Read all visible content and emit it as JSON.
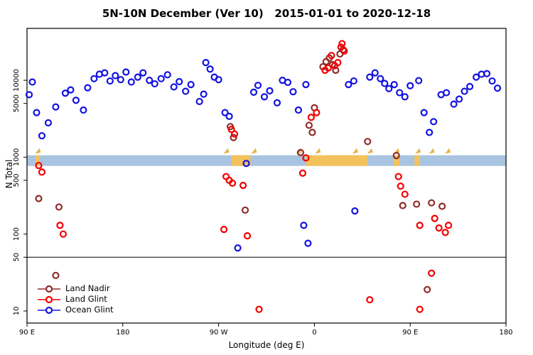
{
  "chart_data": {
    "type": "scatter",
    "title": "5N-10N December (Ver 10)   2015-01-01 to 2020-12-18",
    "xlabel": "Longitude (deg E)",
    "ylabel": "N Total",
    "y_scale": "log",
    "x_range": [
      90,
      540
    ],
    "y_range": [
      10,
      47000
    ],
    "separator_y": 50,
    "x_ticks": [
      {
        "value": 90,
        "label": "90 E"
      },
      {
        "value": 180,
        "label": "180"
      },
      {
        "value": 270,
        "label": "90 W"
      },
      {
        "value": 360,
        "label": "0"
      },
      {
        "value": 450,
        "label": "90 E"
      },
      {
        "value": 540,
        "label": "180"
      }
    ],
    "y_ticks": [
      10,
      50,
      100,
      500,
      1000,
      5000,
      10000
    ],
    "band": {
      "n_top": 1060,
      "n_bottom": 770,
      "ocean_color": "#a9c4e1",
      "land_color": "#f3c25c",
      "arrow_color": "#e9b24a",
      "land_segments": [
        [
          98,
          102
        ],
        [
          282,
          300
        ],
        [
          352,
          410
        ],
        [
          434,
          440
        ],
        [
          454,
          459
        ]
      ],
      "arrow_lons": [
        100,
        277,
        303,
        345,
        363,
        398,
        412,
        437,
        457,
        470,
        485
      ]
    },
    "series": [
      {
        "name": "Land Nadir",
        "color": "#8f2d2b",
        "points": [
          [
            101,
            290
          ],
          [
            120,
            225
          ],
          [
            281,
            2500
          ],
          [
            284,
            1800
          ],
          [
            295,
            205
          ],
          [
            347,
            1150
          ],
          [
            355,
            2600
          ],
          [
            358,
            2100
          ],
          [
            360,
            4400
          ],
          [
            368,
            15000
          ],
          [
            371,
            17500
          ],
          [
            374,
            19500
          ],
          [
            377,
            16000
          ],
          [
            380,
            13500
          ],
          [
            384,
            22000
          ],
          [
            387,
            25000
          ],
          [
            410,
            1600
          ],
          [
            437,
            1050
          ],
          [
            443,
            235
          ],
          [
            456,
            245
          ],
          [
            470,
            255
          ],
          [
            480,
            230
          ],
          [
            117,
            29
          ],
          [
            466,
            19
          ]
        ]
      },
      {
        "name": "Land Glint",
        "color": "#f40000",
        "points": [
          [
            101,
            780
          ],
          [
            104,
            640
          ],
          [
            121,
            130
          ],
          [
            124,
            100
          ],
          [
            275,
            115
          ],
          [
            277,
            560
          ],
          [
            280,
            500
          ],
          [
            283,
            460
          ],
          [
            282,
            2300
          ],
          [
            285,
            2000
          ],
          [
            293,
            430
          ],
          [
            297,
            95
          ],
          [
            349,
            620
          ],
          [
            352,
            980
          ],
          [
            357,
            3300
          ],
          [
            362,
            3800
          ],
          [
            370,
            13500
          ],
          [
            373,
            14500
          ],
          [
            376,
            21000
          ],
          [
            379,
            15500
          ],
          [
            382,
            17000
          ],
          [
            385,
            27000
          ],
          [
            386,
            30000
          ],
          [
            388,
            24000
          ],
          [
            439,
            560
          ],
          [
            441,
            420
          ],
          [
            445,
            330
          ],
          [
            459,
            130
          ],
          [
            473,
            160
          ],
          [
            477,
            120
          ],
          [
            483,
            105
          ],
          [
            486,
            130
          ],
          [
            308,
            10.5
          ],
          [
            412,
            14
          ],
          [
            459,
            10.5
          ],
          [
            470,
            31
          ]
        ]
      },
      {
        "name": "Ocean Glint",
        "color": "#1414e0",
        "points": [
          [
            92,
            6500
          ],
          [
            95,
            9500
          ],
          [
            99,
            3800
          ],
          [
            104,
            1900
          ],
          [
            110,
            2800
          ],
          [
            117,
            4500
          ],
          [
            126,
            6800
          ],
          [
            131,
            7500
          ],
          [
            136,
            5500
          ],
          [
            143,
            4100
          ],
          [
            147,
            8000
          ],
          [
            153,
            10500
          ],
          [
            158,
            12000
          ],
          [
            163,
            12500
          ],
          [
            168,
            9800
          ],
          [
            173,
            11500
          ],
          [
            178,
            10200
          ],
          [
            183,
            12800
          ],
          [
            188,
            9500
          ],
          [
            194,
            11000
          ],
          [
            199,
            12500
          ],
          [
            205,
            10000
          ],
          [
            210,
            9000
          ],
          [
            216,
            10500
          ],
          [
            222,
            11800
          ],
          [
            228,
            8200
          ],
          [
            233,
            9600
          ],
          [
            239,
            7200
          ],
          [
            244,
            8800
          ],
          [
            252,
            5300
          ],
          [
            256,
            6600
          ],
          [
            258,
            17000
          ],
          [
            262,
            14000
          ],
          [
            266,
            11000
          ],
          [
            270,
            10200
          ],
          [
            276,
            3800
          ],
          [
            280,
            3400
          ],
          [
            296,
            830
          ],
          [
            288,
            66
          ],
          [
            303,
            7000
          ],
          [
            307,
            8600
          ],
          [
            313,
            6100
          ],
          [
            318,
            7300
          ],
          [
            325,
            5100
          ],
          [
            330,
            10000
          ],
          [
            335,
            9400
          ],
          [
            340,
            7100
          ],
          [
            345,
            4100
          ],
          [
            352,
            8800
          ],
          [
            350,
            130
          ],
          [
            354,
            76
          ],
          [
            392,
            8800
          ],
          [
            397,
            9800
          ],
          [
            398,
            200
          ],
          [
            412,
            11000
          ],
          [
            417,
            12500
          ],
          [
            422,
            10500
          ],
          [
            426,
            9100
          ],
          [
            430,
            7800
          ],
          [
            435,
            8800
          ],
          [
            440,
            6900
          ],
          [
            445,
            6100
          ],
          [
            450,
            8500
          ],
          [
            458,
            9900
          ],
          [
            463,
            3800
          ],
          [
            468,
            2100
          ],
          [
            472,
            2900
          ],
          [
            479,
            6500
          ],
          [
            484,
            6900
          ],
          [
            491,
            4900
          ],
          [
            496,
            5700
          ],
          [
            501,
            7200
          ],
          [
            506,
            8300
          ],
          [
            512,
            11000
          ],
          [
            517,
            12000
          ],
          [
            522,
            12200
          ],
          [
            527,
            9800
          ],
          [
            532,
            7900
          ]
        ]
      }
    ]
  },
  "legend": {
    "items": [
      {
        "label": "Land Nadir"
      },
      {
        "label": "Land Glint"
      },
      {
        "label": "Ocean Glint"
      }
    ]
  }
}
